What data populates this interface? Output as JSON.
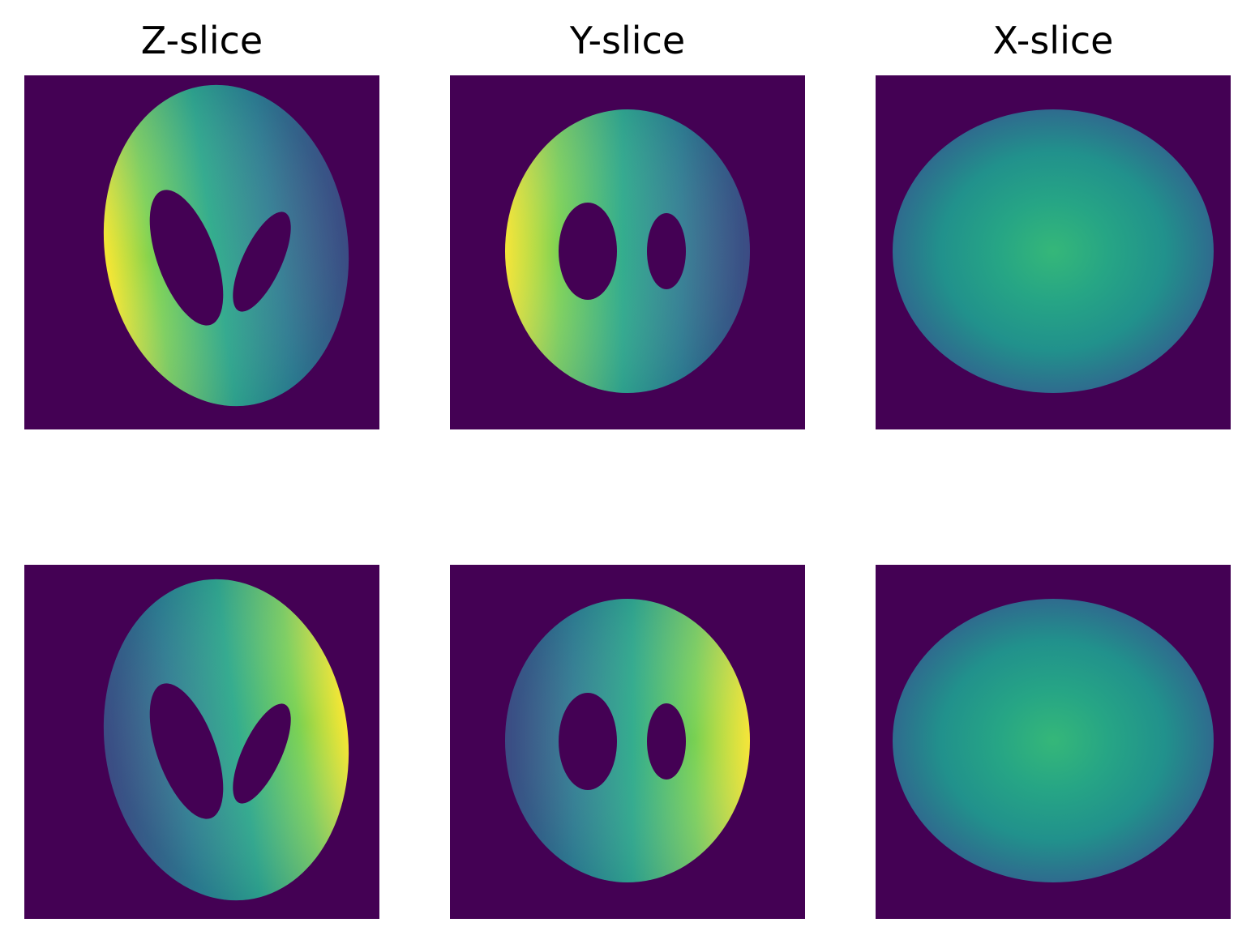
{
  "figure": {
    "titles": [
      "Z-slice",
      "Y-slice",
      "X-slice"
    ]
  },
  "colors": {
    "background": "#440154",
    "viridis": [
      "#440154",
      "#414487",
      "#2a788e",
      "#22a884",
      "#7ad151",
      "#fde725"
    ]
  },
  "chart_data": [
    {
      "type": "heatmap",
      "title": "Z-slice",
      "row": 1,
      "col": 1,
      "content": "ellipse with two elliptical holes tilted; intensity highest on left edge, decreasing to the right",
      "value_range": [
        0,
        1
      ]
    },
    {
      "type": "heatmap",
      "title": "Y-slice",
      "row": 1,
      "col": 2,
      "content": "ellipse with two upright elliptical holes; intensity highest on left edge, decreasing to the right",
      "value_range": [
        0,
        1
      ]
    },
    {
      "type": "heatmap",
      "title": "X-slice",
      "row": 1,
      "col": 3,
      "content": "ellipse, radial gradient, brightest at center",
      "value_range": [
        0,
        1
      ]
    },
    {
      "type": "heatmap",
      "title": "",
      "row": 2,
      "col": 1,
      "content": "ellipse with two elliptical holes tilted; intensity highest on right edge, decreasing to the left",
      "value_range": [
        0,
        1
      ]
    },
    {
      "type": "heatmap",
      "title": "",
      "row": 2,
      "col": 2,
      "content": "ellipse with two upright elliptical holes; intensity highest on right edge, decreasing to the left",
      "value_range": [
        0,
        1
      ]
    },
    {
      "type": "heatmap",
      "title": "",
      "row": 2,
      "col": 3,
      "content": "ellipse, radial gradient, brightest at center",
      "value_range": [
        0,
        1
      ]
    }
  ]
}
